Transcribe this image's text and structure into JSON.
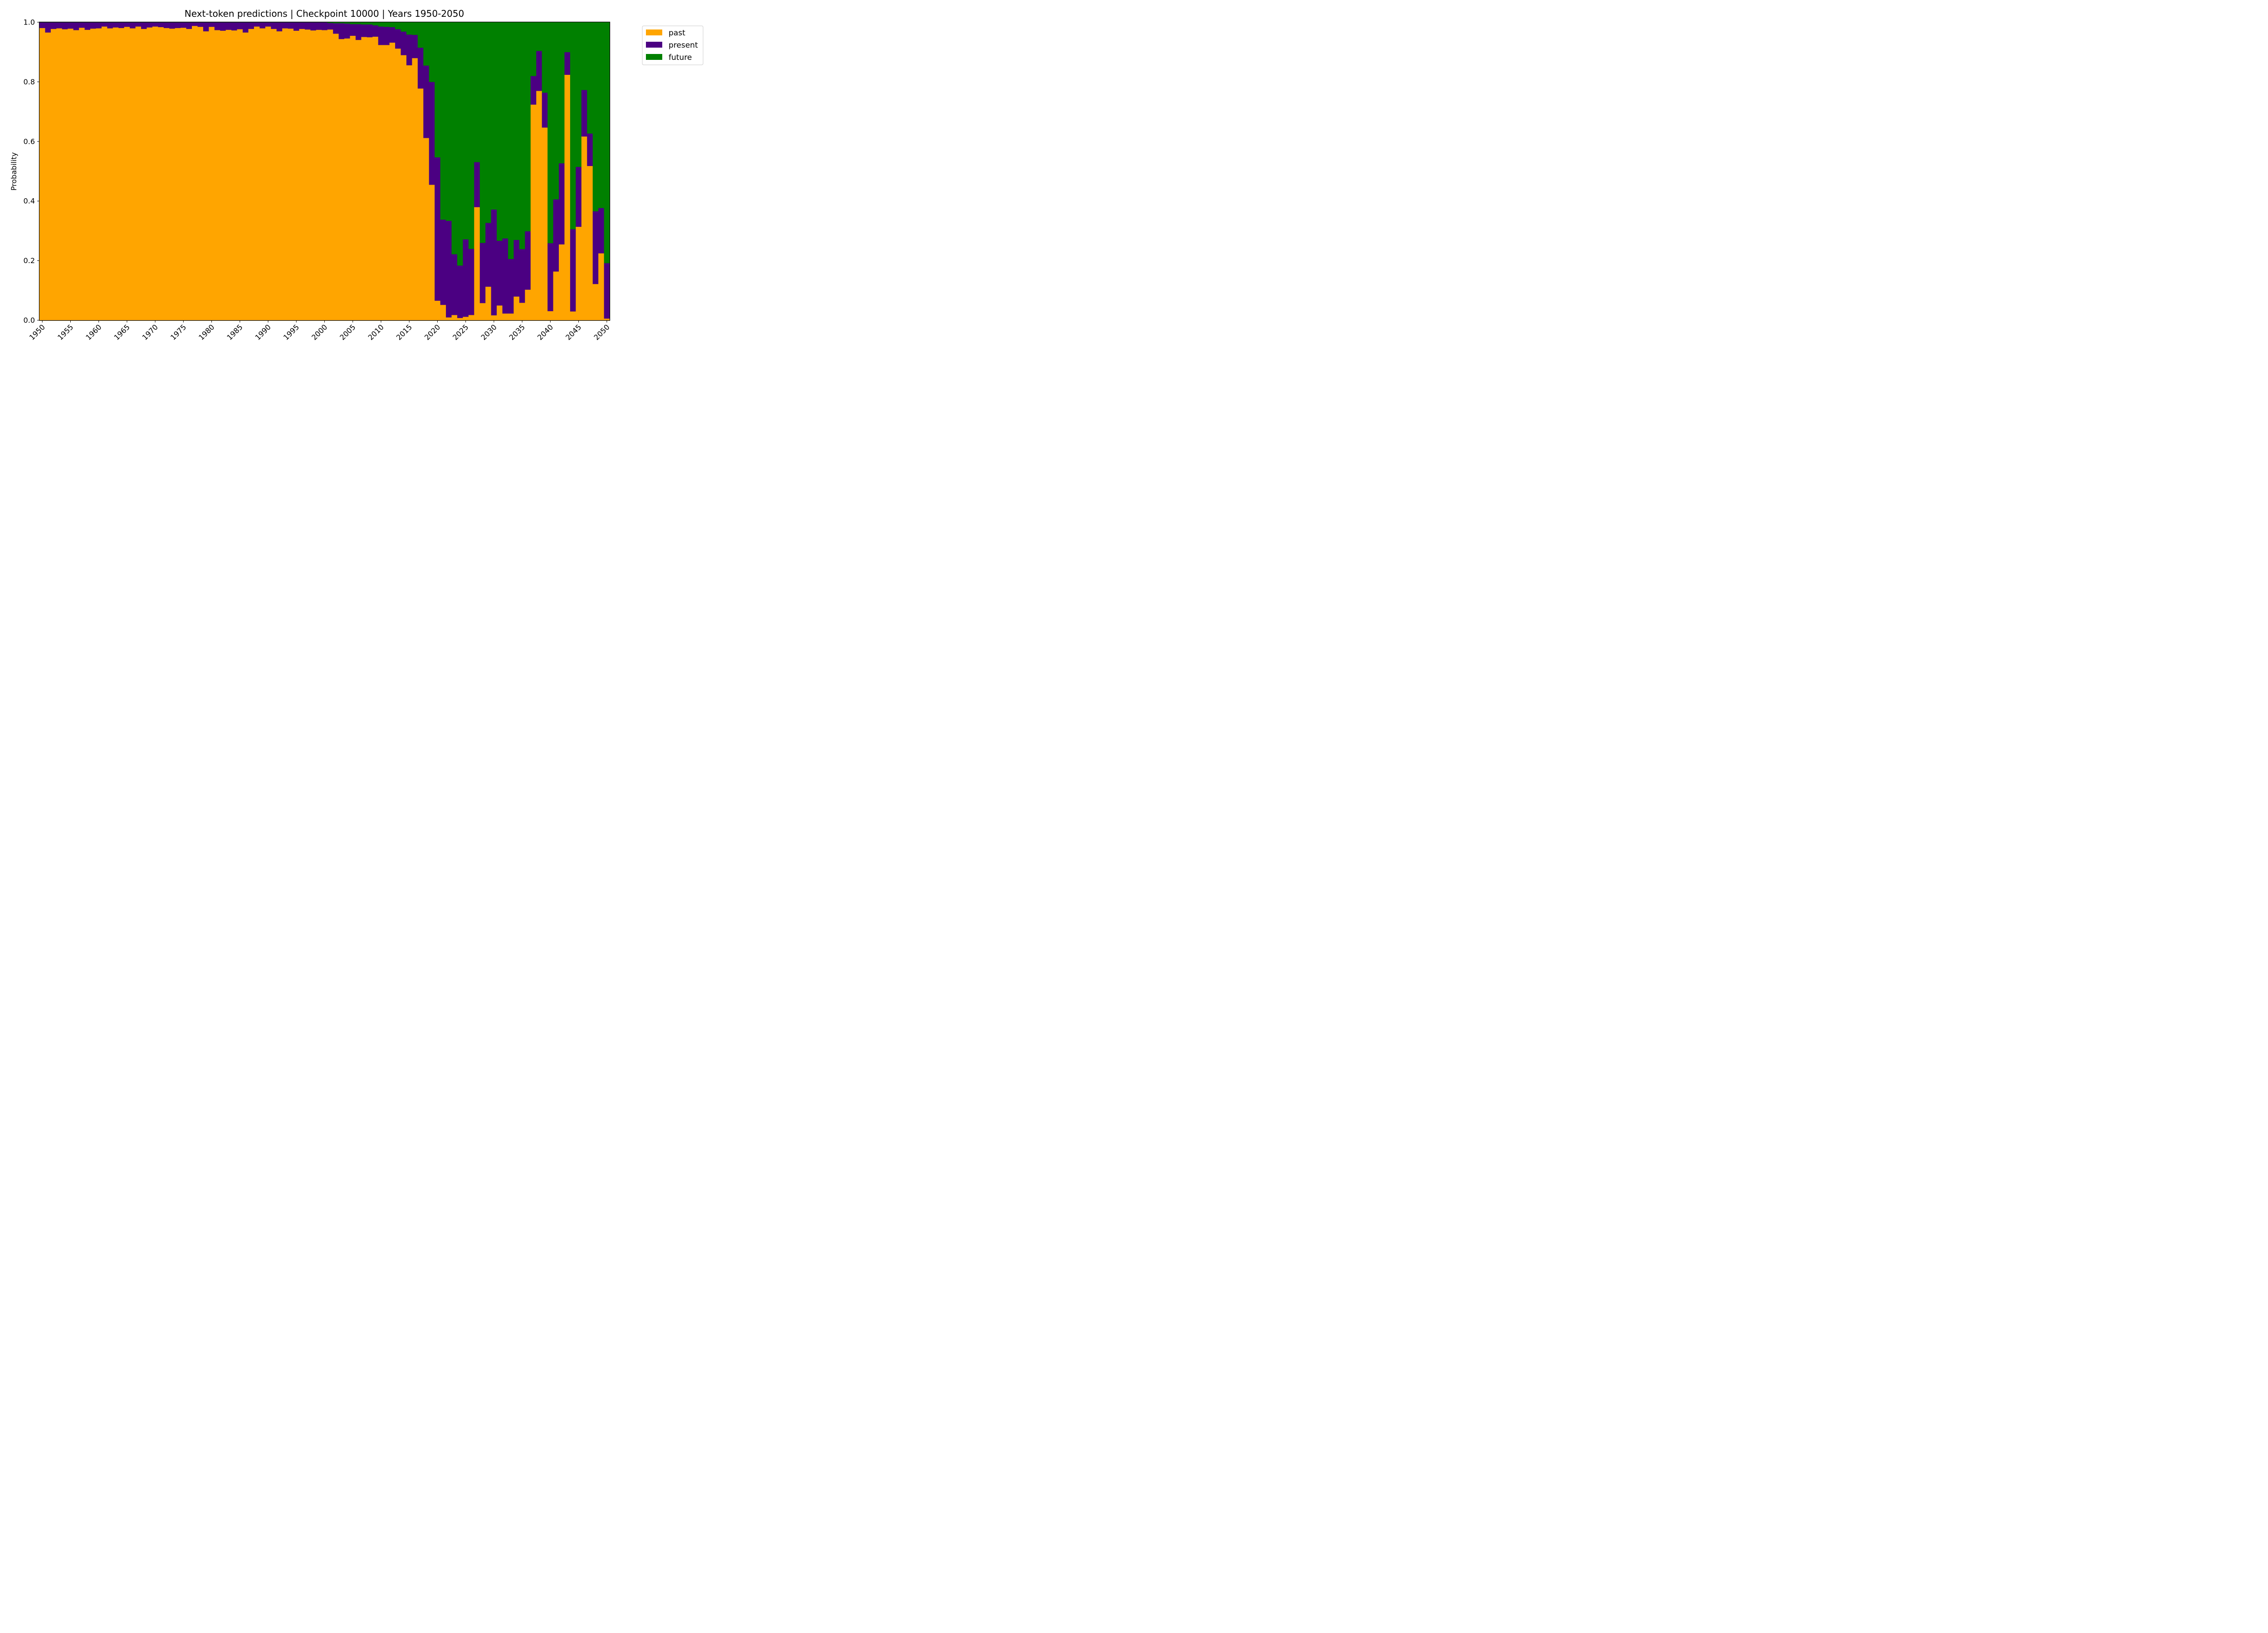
{
  "chart_data": {
    "type": "bar",
    "stacked": true,
    "title": "Next-token predictions | Checkpoint 10000 | Years 1950-2050",
    "xlabel": "",
    "ylabel": "Probability",
    "ylim": [
      0,
      1
    ],
    "yticks": [
      "0.0",
      "0.2",
      "0.4",
      "0.6",
      "0.8",
      "1.0"
    ],
    "xticks": [
      "1950",
      "1955",
      "1960",
      "1965",
      "1970",
      "1975",
      "1980",
      "1985",
      "1990",
      "1995",
      "2000",
      "2005",
      "2010",
      "2015",
      "2020",
      "2025",
      "2030",
      "2035",
      "2040",
      "2045",
      "2050"
    ],
    "x": [
      1950,
      1951,
      1952,
      1953,
      1954,
      1955,
      1956,
      1957,
      1958,
      1959,
      1960,
      1961,
      1962,
      1963,
      1964,
      1965,
      1966,
      1967,
      1968,
      1969,
      1970,
      1971,
      1972,
      1973,
      1974,
      1975,
      1976,
      1977,
      1978,
      1979,
      1980,
      1981,
      1982,
      1983,
      1984,
      1985,
      1986,
      1987,
      1988,
      1989,
      1990,
      1991,
      1992,
      1993,
      1994,
      1995,
      1996,
      1997,
      1998,
      1999,
      2000,
      2001,
      2002,
      2003,
      2004,
      2005,
      2006,
      2007,
      2008,
      2009,
      2010,
      2011,
      2012,
      2013,
      2014,
      2015,
      2016,
      2017,
      2018,
      2019,
      2020,
      2021,
      2022,
      2023,
      2024,
      2025,
      2026,
      2027,
      2028,
      2029,
      2030,
      2031,
      2032,
      2033,
      2034,
      2035,
      2036,
      2037,
      2038,
      2039,
      2040,
      2041,
      2042,
      2043,
      2044,
      2045,
      2046,
      2047,
      2048,
      2049,
      2050
    ],
    "legend_position": "outside-top-right",
    "grid": false,
    "series": [
      {
        "name": "past",
        "color": "#ffa500",
        "values": [
          0.981,
          0.966,
          0.978,
          0.98,
          0.977,
          0.979,
          0.974,
          0.982,
          0.975,
          0.979,
          0.98,
          0.986,
          0.98,
          0.983,
          0.981,
          0.985,
          0.98,
          0.986,
          0.978,
          0.983,
          0.986,
          0.984,
          0.981,
          0.979,
          0.981,
          0.982,
          0.978,
          0.988,
          0.985,
          0.97,
          0.985,
          0.974,
          0.972,
          0.975,
          0.973,
          0.977,
          0.966,
          0.978,
          0.986,
          0.98,
          0.986,
          0.978,
          0.97,
          0.98,
          0.979,
          0.972,
          0.978,
          0.976,
          0.973,
          0.975,
          0.974,
          0.976,
          0.962,
          0.944,
          0.946,
          0.955,
          0.941,
          0.951,
          0.95,
          0.952,
          0.924,
          0.924,
          0.932,
          0.912,
          0.89,
          0.856,
          0.88,
          0.778,
          0.612,
          0.455,
          0.066,
          0.052,
          0.01,
          0.018,
          0.008,
          0.012,
          0.018,
          0.38,
          0.058,
          0.113,
          0.017,
          0.05,
          0.023,
          0.023,
          0.08,
          0.059,
          0.103,
          0.724,
          0.77,
          0.647,
          0.031,
          0.164,
          0.255,
          0.824,
          0.03,
          0.314,
          0.617,
          0.518,
          0.122,
          0.225,
          0.006
        ]
      },
      {
        "name": "present",
        "color": "#4b0082",
        "values": [
          0.019,
          0.034,
          0.022,
          0.02,
          0.023,
          0.021,
          0.026,
          0.018,
          0.025,
          0.021,
          0.02,
          0.014,
          0.02,
          0.017,
          0.019,
          0.015,
          0.02,
          0.014,
          0.022,
          0.017,
          0.014,
          0.016,
          0.019,
          0.021,
          0.019,
          0.018,
          0.022,
          0.012,
          0.015,
          0.03,
          0.015,
          0.026,
          0.028,
          0.025,
          0.027,
          0.023,
          0.034,
          0.022,
          0.014,
          0.02,
          0.014,
          0.022,
          0.03,
          0.02,
          0.021,
          0.028,
          0.022,
          0.024,
          0.027,
          0.025,
          0.026,
          0.022,
          0.035,
          0.053,
          0.05,
          0.039,
          0.053,
          0.042,
          0.043,
          0.038,
          0.062,
          0.061,
          0.052,
          0.065,
          0.079,
          0.103,
          0.078,
          0.137,
          0.243,
          0.345,
          0.481,
          0.286,
          0.324,
          0.204,
          0.176,
          0.26,
          0.222,
          0.151,
          0.202,
          0.214,
          0.355,
          0.217,
          0.252,
          0.183,
          0.19,
          0.18,
          0.196,
          0.096,
          0.134,
          0.117,
          0.228,
          0.242,
          0.272,
          0.076,
          0.276,
          0.201,
          0.156,
          0.109,
          0.244,
          0.152,
          0.186
        ]
      },
      {
        "name": "future",
        "color": "#008000",
        "values": [
          0.0,
          0.0,
          0.0,
          0.0,
          0.0,
          0.0,
          0.0,
          0.0,
          0.0,
          0.0,
          0.0,
          0.0,
          0.0,
          0.0,
          0.0,
          0.0,
          0.0,
          0.0,
          0.0,
          0.0,
          0.0,
          0.0,
          0.0,
          0.0,
          0.0,
          0.0,
          0.0,
          0.0,
          0.0,
          0.0,
          0.0,
          0.0,
          0.0,
          0.0,
          0.0,
          0.0,
          0.0,
          0.0,
          0.0,
          0.0,
          0.0,
          0.0,
          0.0,
          0.0,
          0.0,
          0.0,
          0.0,
          0.0,
          0.0,
          0.0,
          0.0,
          0.002,
          0.003,
          0.003,
          0.004,
          0.006,
          0.006,
          0.007,
          0.007,
          0.01,
          0.014,
          0.015,
          0.016,
          0.023,
          0.031,
          0.041,
          0.042,
          0.085,
          0.145,
          0.2,
          0.453,
          0.662,
          0.666,
          0.778,
          0.816,
          0.728,
          0.76,
          0.469,
          0.74,
          0.673,
          0.628,
          0.733,
          0.725,
          0.794,
          0.73,
          0.761,
          0.701,
          0.18,
          0.096,
          0.236,
          0.741,
          0.594,
          0.473,
          0.1,
          0.694,
          0.485,
          0.227,
          0.373,
          0.634,
          0.623,
          0.808
        ]
      }
    ]
  }
}
